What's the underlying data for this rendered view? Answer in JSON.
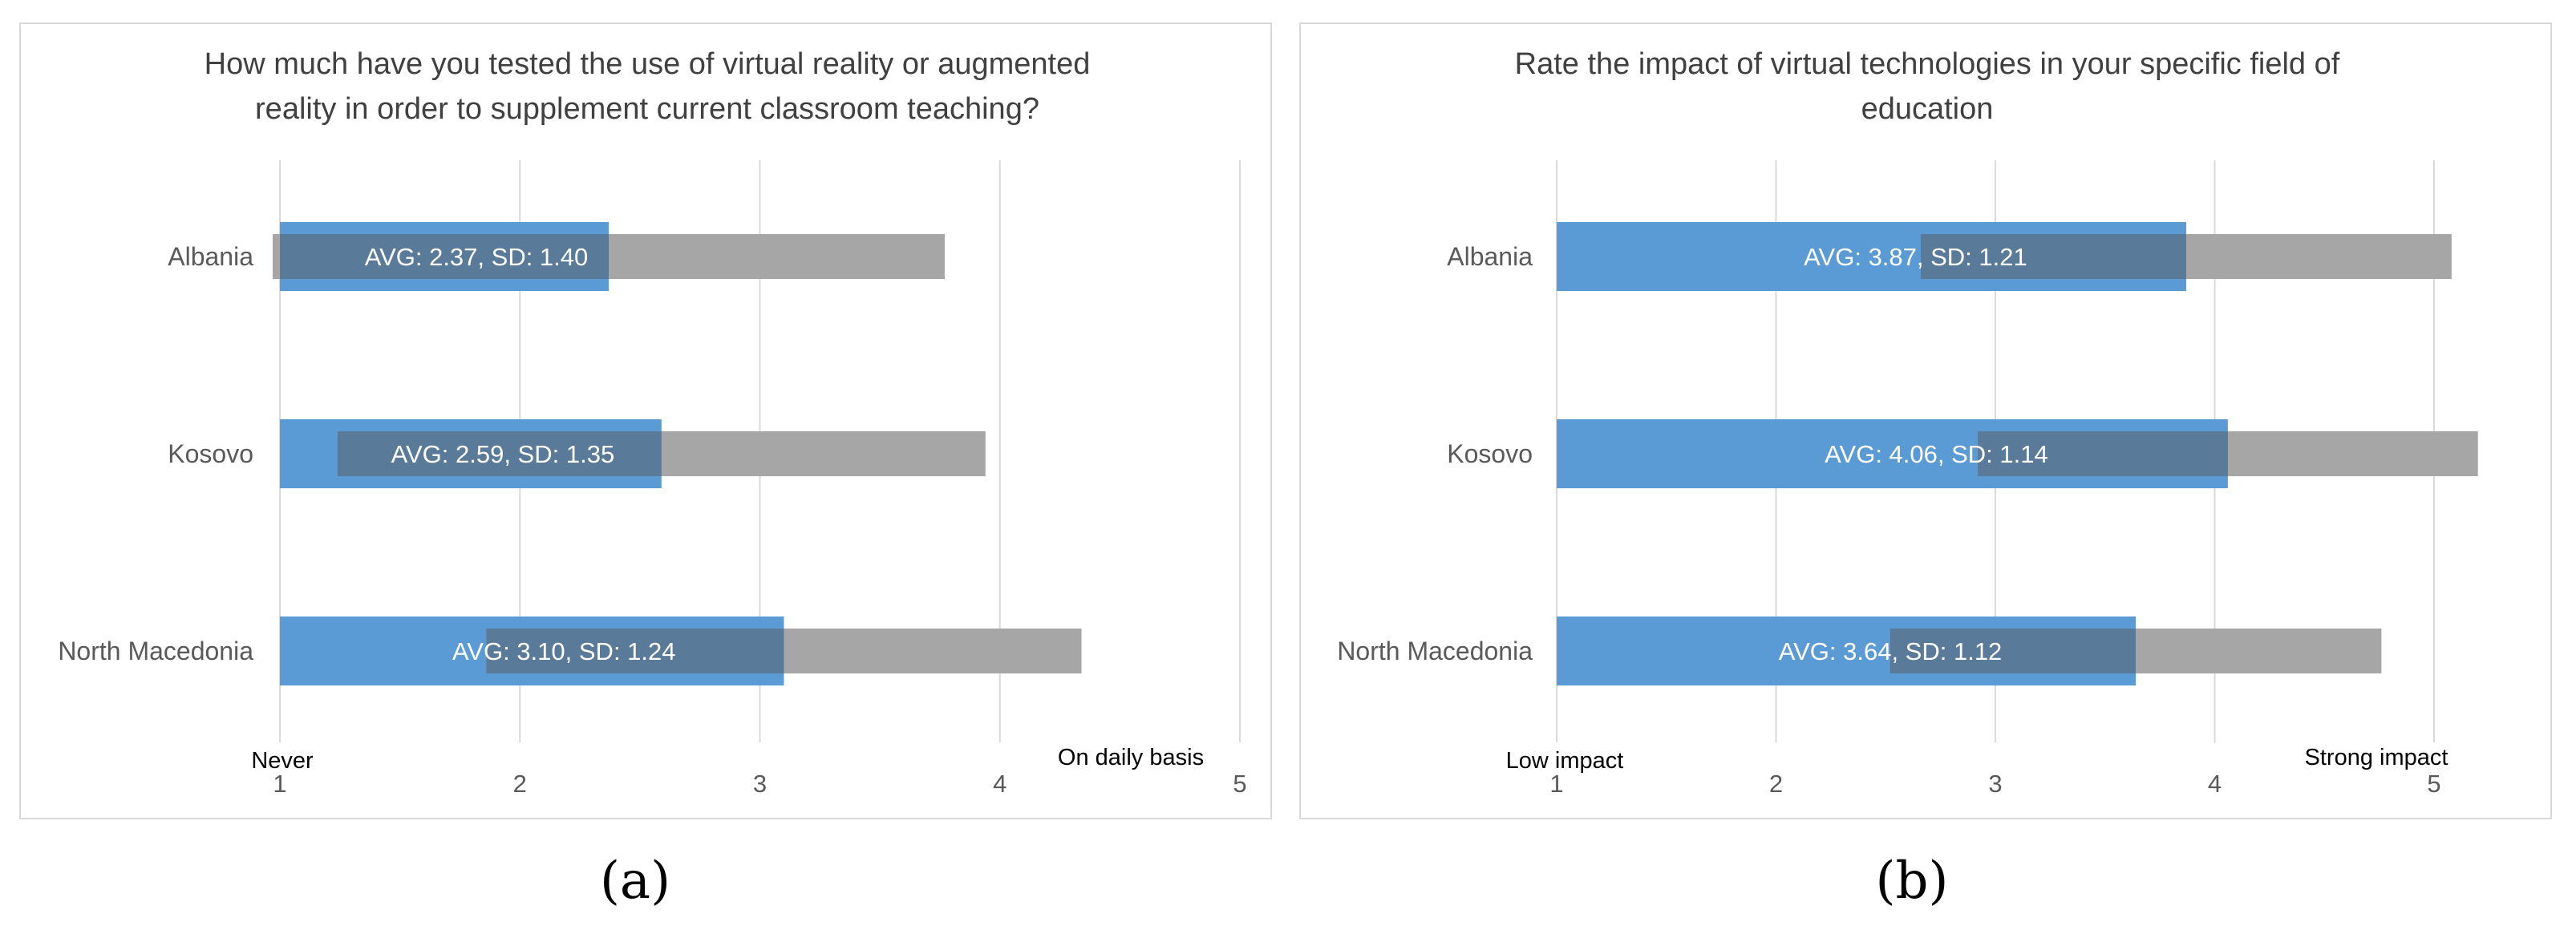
{
  "charts": [
    {
      "id": "a",
      "panel_label": "(a)",
      "title_lines": [
        "How much have you tested the use of virtual reality or augmented",
        "reality in order to supplement current classroom teaching?"
      ],
      "left_label": "Never",
      "right_label": "On daily basis",
      "colors": {
        "avg_bar": "#5b9bd5",
        "sd_bar": "#a6a6a6",
        "overlap": "#5a7a99"
      }
    },
    {
      "id": "b",
      "panel_label": "(b)",
      "title_lines": [
        "Rate the impact of virtual technologies in your specific field of",
        "education"
      ],
      "left_label": "Low impact",
      "right_label": "Strong impact",
      "colors": {
        "avg_bar": "#5b9bd5",
        "sd_bar": "#a6a6a6",
        "overlap": "#5a7a99"
      }
    }
  ],
  "chart_data": [
    {
      "type": "bar",
      "orientation": "horizontal",
      "title": "How much have you tested the use of virtual reality or augmented reality in order to supplement current classroom teaching?",
      "categories": [
        "Albania",
        "Kosovo",
        "North Macedonia"
      ],
      "series": [
        {
          "name": "AVG",
          "values": [
            2.37,
            2.59,
            3.1
          ]
        },
        {
          "name": "SD",
          "values": [
            1.4,
            1.35,
            1.24
          ]
        }
      ],
      "data_labels": [
        "AVG: 2.37, SD: 1.40",
        "AVG: 2.59, SD: 1.35",
        "AVG: 3.10, SD: 1.24"
      ],
      "xlim": [
        1,
        5
      ],
      "xticks": [
        "1",
        "2",
        "3",
        "4",
        "5"
      ],
      "grid": true
    },
    {
      "type": "bar",
      "orientation": "horizontal",
      "title": "Rate the impact of virtual technologies in your specific field of education",
      "categories": [
        "Albania",
        "Kosovo",
        "North Macedonia"
      ],
      "series": [
        {
          "name": "AVG",
          "values": [
            3.87,
            4.06,
            3.64
          ]
        },
        {
          "name": "SD",
          "values": [
            1.21,
            1.14,
            1.12
          ]
        }
      ],
      "data_labels": [
        "AVG: 3.87, SD: 1.21",
        "AVG: 4.06, SD: 1.14",
        "AVG: 3.64, SD: 1.12"
      ],
      "xlim": [
        1,
        5
      ],
      "xticks": [
        "1",
        "2",
        "3",
        "4",
        "5"
      ],
      "grid": true
    }
  ]
}
